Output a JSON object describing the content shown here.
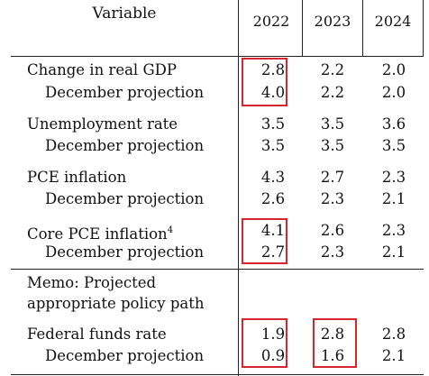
{
  "table": {
    "header": {
      "variable": "Variable",
      "years": [
        "2022",
        "2023",
        "2024"
      ]
    },
    "groups": [
      {
        "label": "Change in real GDP",
        "values": [
          "2.8",
          "2.2",
          "2.0"
        ],
        "sub_label": "December projection",
        "sub_values": [
          "4.0",
          "2.2",
          "2.0"
        ]
      },
      {
        "label": "Unemployment rate",
        "values": [
          "3.5",
          "3.5",
          "3.6"
        ],
        "sub_label": "December projection",
        "sub_values": [
          "3.5",
          "3.5",
          "3.5"
        ]
      },
      {
        "label": "PCE inflation",
        "values": [
          "4.3",
          "2.7",
          "2.3"
        ],
        "sub_label": "December projection",
        "sub_values": [
          "2.6",
          "2.3",
          "2.1"
        ]
      },
      {
        "label": "Core PCE inflation",
        "label_sup": "4",
        "values": [
          "4.1",
          "2.6",
          "2.3"
        ],
        "sub_label": "December projection",
        "sub_values": [
          "2.7",
          "2.3",
          "2.1"
        ]
      }
    ],
    "memo": {
      "line1": "Memo: Projected",
      "line2": "appropriate policy path"
    },
    "policy": {
      "label": "Federal funds rate",
      "values": [
        "1.9",
        "2.8",
        "2.8"
      ],
      "sub_label": "December projection",
      "sub_values": [
        "0.9",
        "1.6",
        "2.1"
      ]
    }
  },
  "highlight_color": "#d8262f"
}
